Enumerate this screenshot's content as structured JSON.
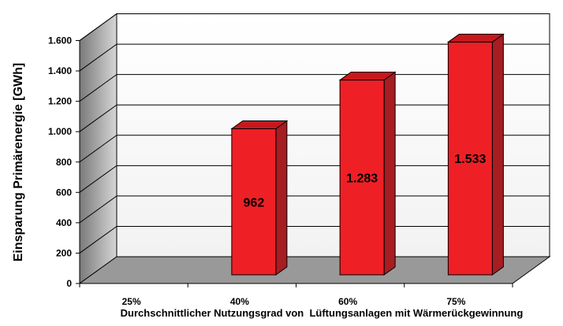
{
  "chart_data": {
    "type": "bar",
    "title": "",
    "xlabel": "Durchschnittlicher Nutzungsgrad von  Lüftungsanlagen mit Wärmerückgewinnung",
    "ylabel": "Einsparung Primärenergie [GWh]",
    "ylim": [
      0,
      1600
    ],
    "yticks": [
      0,
      200,
      400,
      600,
      800,
      1000,
      1200,
      1400,
      1600
    ],
    "ytick_labels": [
      "0",
      "200",
      "400",
      "600",
      "800",
      "1.000",
      "1.200",
      "1.400",
      "1.600"
    ],
    "categories": [
      "25%",
      "40%",
      "60%",
      "75%"
    ],
    "values": [
      0,
      962,
      1283,
      1533
    ],
    "data_labels": [
      "",
      "962",
      "1.283",
      "1.533"
    ],
    "grid": true,
    "three_d": true,
    "colors": {
      "bar_front": "#ee2026",
      "bar_side": "#a61d22",
      "bar_top": "#c8181e",
      "wall": "#ffffff",
      "wall_shade": "#c0c0c0",
      "floor": "#999999",
      "grid": "#000000"
    }
  }
}
